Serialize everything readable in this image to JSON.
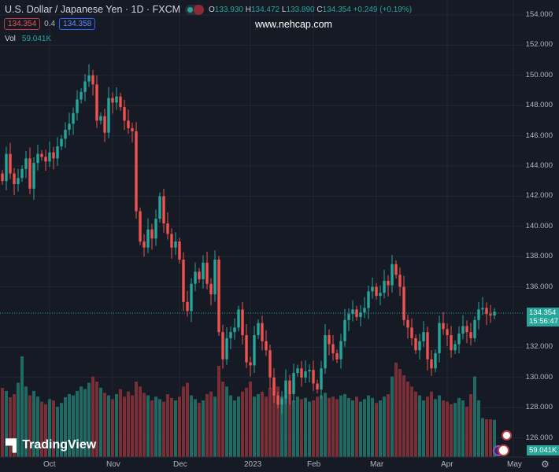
{
  "header": {
    "symbol": "U.S. Dollar / Japanese Yen · 1D · FXCM",
    "o_label": "O",
    "o": "133.930",
    "h_label": "H",
    "h": "134.472",
    "l_label": "L",
    "l": "133.890",
    "c_label": "C",
    "c": "134.354",
    "change": "+0.249 (+0.19%)"
  },
  "quote": {
    "bid": "134.354",
    "spread": "0.4",
    "ask": "134.358"
  },
  "volume": {
    "label": "Vol",
    "value": "59.041K"
  },
  "watermark": "www.nehcap.com",
  "logo": "TradingView",
  "last_price": {
    "price": "134.354",
    "countdown": "15:56:47",
    "volume": "59.041K"
  },
  "colors": {
    "up": "#26a69a",
    "down": "#ef5350",
    "bg": "#161a25",
    "vol_up": "#1f6b63",
    "vol_down": "#7a2e35"
  },
  "chart_data": {
    "type": "candlestick",
    "title": "U.S. Dollar / Japanese Yen · 1D · FXCM",
    "ylim": [
      125.3,
      154.6
    ],
    "y_ticks": [
      "154.000",
      "152.000",
      "150.000",
      "148.000",
      "146.000",
      "144.000",
      "142.000",
      "140.000",
      "138.000",
      "136.000",
      "132.000",
      "130.000",
      "128.000",
      "126.000"
    ],
    "x_ticks": [
      {
        "label": "Oct",
        "index": 12
      },
      {
        "label": "Nov",
        "index": 28
      },
      {
        "label": "Dec",
        "index": 45
      },
      {
        "label": "2023",
        "index": 63
      },
      {
        "label": "Feb",
        "index": 79
      },
      {
        "label": "Mar",
        "index": 95
      },
      {
        "label": "Apr",
        "index": 113
      },
      {
        "label": "May",
        "index": 130
      }
    ],
    "first_open": 143.5,
    "close": [
      143.0,
      144.8,
      143.5,
      142.8,
      143.2,
      143.8,
      144.5,
      142.5,
      144.2,
      144.8,
      144.6,
      144.3,
      144.9,
      144.5,
      145.3,
      145.8,
      146.4,
      146.8,
      147.5,
      148.4,
      148.9,
      149.6,
      150.0,
      149.4,
      147.0,
      147.3,
      146.2,
      148.5,
      148.2,
      148.6,
      147.9,
      147.0,
      146.5,
      146.3,
      141.0,
      139.0,
      138.6,
      139.8,
      139.2,
      140.5,
      142.0,
      140.2,
      139.5,
      138.6,
      139.0,
      137.8,
      135.0,
      134.4,
      136.2,
      137.0,
      136.5,
      137.6,
      136.2,
      135.5,
      137.8,
      133.0,
      131.2,
      132.6,
      133.0,
      133.3,
      134.5,
      132.8,
      131.0,
      130.8,
      132.8,
      133.6,
      132.4,
      131.8,
      130.0,
      128.8,
      128.2,
      128.6,
      129.8,
      128.9,
      130.3,
      130.6,
      130.0,
      130.4,
      130.5,
      129.6,
      129.2,
      130.6,
      132.8,
      132.2,
      131.6,
      131.2,
      132.4,
      133.8,
      134.2,
      134.5,
      134.0,
      134.3,
      134.6,
      135.7,
      136.0,
      135.4,
      135.6,
      136.4,
      136.1,
      137.5,
      136.8,
      136.0,
      133.8,
      133.3,
      132.6,
      131.8,
      132.4,
      133.0,
      131.2,
      130.6,
      131.6,
      133.6,
      133.2,
      132.8,
      131.8,
      132.2,
      132.9,
      133.4,
      133.0,
      132.6,
      133.8,
      134.5,
      134.6,
      134.2,
      134.1,
      134.354
    ],
    "volume_k": [
      110,
      105,
      95,
      100,
      118,
      160,
      112,
      98,
      105,
      96,
      88,
      84,
      92,
      90,
      80,
      86,
      95,
      100,
      98,
      105,
      112,
      108,
      118,
      128,
      120,
      110,
      102,
      98,
      92,
      100,
      108,
      96,
      104,
      98,
      120,
      112,
      102,
      98,
      90,
      96,
      92,
      88,
      100,
      94,
      90,
      96,
      112,
      118,
      98,
      92,
      86,
      90,
      100,
      104,
      96,
      145,
      120,
      112,
      98,
      90,
      96,
      104,
      110,
      120,
      96,
      100,
      104,
      96,
      110,
      118,
      112,
      96,
      98,
      102,
      90,
      96,
      92,
      94,
      88,
      90,
      96,
      98,
      102,
      94,
      96,
      92,
      98,
      100,
      94,
      90,
      96,
      88,
      92,
      98,
      94,
      86,
      90,
      96,
      100,
      128,
      150,
      140,
      130,
      120,
      112,
      104,
      98,
      90,
      96,
      104,
      92,
      98,
      90,
      88,
      84,
      86,
      94,
      90,
      80,
      100,
      128,
      90,
      62,
      60,
      60,
      59.041
    ]
  }
}
